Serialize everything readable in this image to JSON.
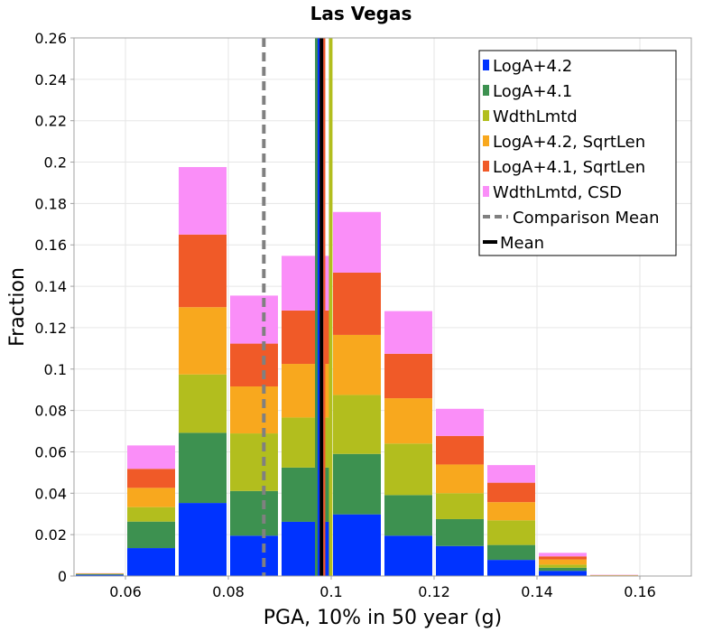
{
  "chart_data": {
    "type": "bar",
    "stacked": true,
    "title": "Las Vegas",
    "xlabel": "PGA, 10% in 50 year (g)",
    "ylabel": "Fraction",
    "xlim": [
      0.05,
      0.17
    ],
    "ylim": [
      0,
      0.26
    ],
    "xticks": [
      "0.06",
      "0.08",
      "0.1",
      "0.12",
      "0.14",
      "0.16"
    ],
    "yticks": [
      "0",
      "0.02",
      "0.04",
      "0.06",
      "0.08",
      "0.1",
      "0.12",
      "0.14",
      "0.16",
      "0.18",
      "0.2",
      "0.22",
      "0.24",
      "0.26"
    ],
    "bin_centers": [
      0.055,
      0.065,
      0.075,
      0.085,
      0.095,
      0.105,
      0.115,
      0.125,
      0.135,
      0.145,
      0.155,
      0.165
    ],
    "series": [
      {
        "name": "LogA+4.2",
        "color": "#0033ff",
        "values": [
          0.0006,
          0.0135,
          0.0353,
          0.0195,
          0.0262,
          0.0298,
          0.0195,
          0.0145,
          0.0078,
          0.0025,
          0.0001,
          0
        ]
      },
      {
        "name": "LogA+4.1",
        "color": "#3d9150",
        "values": [
          0.0003,
          0.0128,
          0.0339,
          0.0216,
          0.0262,
          0.0292,
          0.0196,
          0.013,
          0.0072,
          0.0015,
          0.0001,
          0
        ]
      },
      {
        "name": "WdthLmtd",
        "color": "#b2be1e",
        "values": [
          0.0002,
          0.007,
          0.0282,
          0.0278,
          0.0242,
          0.0285,
          0.0249,
          0.0125,
          0.0119,
          0.0015,
          0.0001,
          0
        ]
      },
      {
        "name": "LogA+4.2, SqrtLen",
        "color": "#f8a81e",
        "values": [
          0.0001,
          0.0093,
          0.0325,
          0.0227,
          0.0259,
          0.029,
          0.0219,
          0.0139,
          0.0088,
          0.0025,
          0.0001,
          0
        ]
      },
      {
        "name": "LogA+4.1, SqrtLen",
        "color": "#f05a28",
        "values": [
          0.0001,
          0.0092,
          0.0351,
          0.0207,
          0.0258,
          0.0301,
          0.0215,
          0.0138,
          0.0094,
          0.0015,
          0.0001,
          0
        ]
      },
      {
        "name": "WdthLmtd, CSD",
        "color": "#fa8ef8",
        "values": [
          0.0001,
          0.0113,
          0.0326,
          0.0232,
          0.0264,
          0.0293,
          0.0206,
          0.0131,
          0.0085,
          0.0017,
          0.0001,
          0
        ]
      }
    ],
    "vertical_lines": [
      {
        "series": "LogA+4.1",
        "x": 0.0972,
        "color": "#3d9150",
        "style": "solid"
      },
      {
        "series": "WdthLmtd",
        "x": 0.0999,
        "color": "#b2be1e",
        "style": "solid"
      },
      {
        "series": "LogA+4.2",
        "x": 0.0977,
        "color": "#0033ff",
        "style": "solid"
      },
      {
        "series": "LogA+4.1, SqrtLen",
        "x": 0.0985,
        "color": "#f05a28",
        "style": "solid"
      },
      {
        "series": "WdthLmtd, CSD",
        "x": 0.0981,
        "color": "#fa8ef8",
        "style": "solid"
      },
      {
        "series": "Comparison Mean",
        "x": 0.0869,
        "color": "#808080",
        "style": "dashed"
      },
      {
        "series": "Mean",
        "x": 0.0981,
        "color": "#000000",
        "style": "solid"
      }
    ],
    "legend": {
      "position": "top-right",
      "entries": [
        {
          "label": "LogA+4.2",
          "color": "#0033ff",
          "kind": "box"
        },
        {
          "label": "LogA+4.1",
          "color": "#3d9150",
          "kind": "box"
        },
        {
          "label": "WdthLmtd",
          "color": "#b2be1e",
          "kind": "box"
        },
        {
          "label": "LogA+4.2, SqrtLen",
          "color": "#f8a81e",
          "kind": "box"
        },
        {
          "label": "LogA+4.1, SqrtLen",
          "color": "#f05a28",
          "kind": "box"
        },
        {
          "label": "WdthLmtd, CSD",
          "color": "#fa8ef8",
          "kind": "box"
        },
        {
          "label": "Comparison Mean",
          "color": "#808080",
          "kind": "dashed"
        },
        {
          "label": "Mean",
          "color": "#000000",
          "kind": "line"
        }
      ]
    },
    "grid": true
  }
}
